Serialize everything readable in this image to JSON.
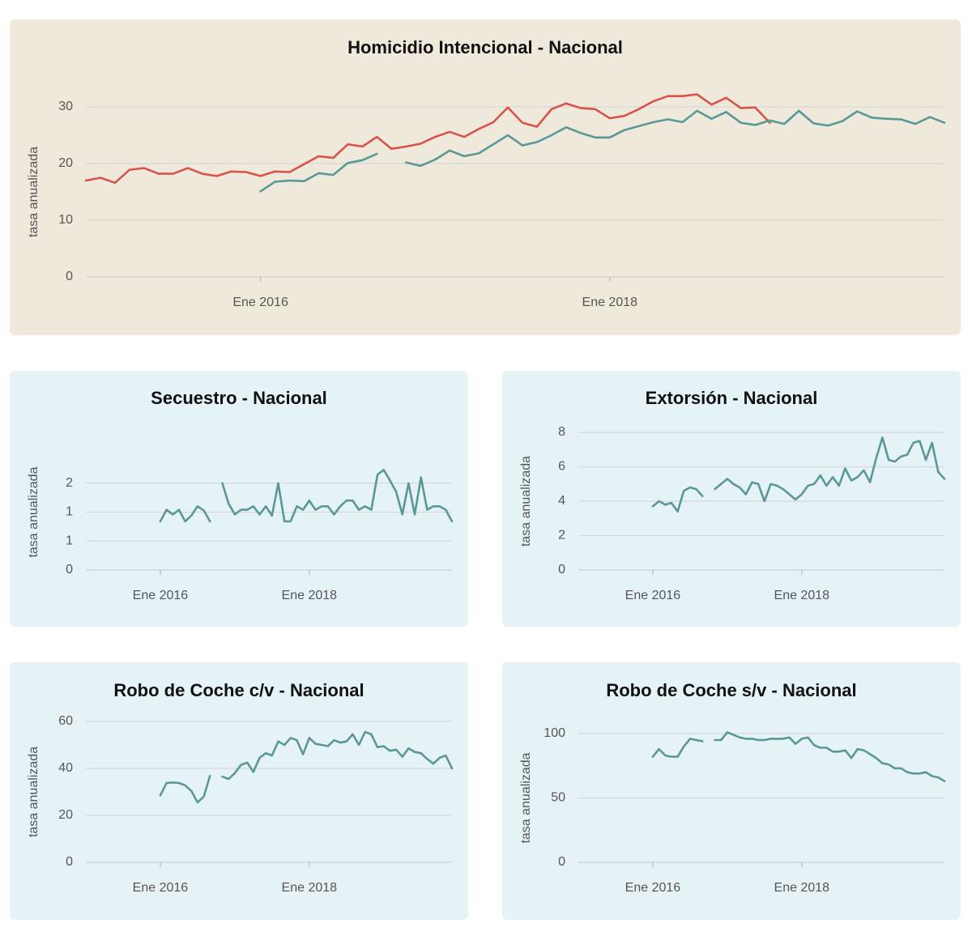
{
  "chart_data": [
    {
      "type": "line",
      "title": "Homicidio Intencional - Nacional",
      "ylabel": "tasa anualizada",
      "xlabel": "",
      "ylim": [
        0,
        30
      ],
      "yticks": [
        0,
        10,
        20,
        30
      ],
      "xticks": [
        {
          "x": 24,
          "label": "Ene 2016"
        },
        {
          "x": 48,
          "label": "Ene 2018"
        }
      ],
      "xlim": [
        12,
        71
      ],
      "grid": true,
      "background": "#efe9dc",
      "series": [
        {
          "color": "#d9534a",
          "x_start": 12,
          "values": [
            17.0,
            17.5,
            16.6,
            18.9,
            19.2,
            18.2,
            18.2,
            19.2,
            18.2,
            17.8,
            18.6,
            18.5,
            17.8,
            18.6,
            18.5,
            19.9,
            21.3,
            21.0,
            23.4,
            23.0,
            24.7,
            22.6,
            23.0,
            23.5,
            24.7,
            25.6,
            24.7,
            26.1,
            27.3,
            29.9,
            27.2,
            26.5,
            29.6,
            30.6,
            29.8,
            29.6,
            28.0,
            28.4,
            29.6,
            31.0,
            31.9,
            31.9,
            32.2,
            30.4,
            31.6,
            29.8,
            29.9,
            27.2
          ]
        },
        {
          "color": "#5a9898",
          "x_start": 24,
          "values": [
            15.1,
            16.8,
            17.0,
            16.9,
            18.3,
            18.0,
            20.1,
            20.6,
            21.7,
            null,
            20.2,
            19.6,
            20.7,
            22.3,
            21.3,
            21.8,
            23.4,
            25.0,
            23.2,
            23.8,
            25.0,
            26.4,
            25.4,
            24.6,
            24.6,
            25.9,
            26.6,
            27.3,
            27.8,
            27.3,
            29.3,
            27.9,
            29.1,
            27.2,
            26.8,
            27.6,
            27.0,
            29.3,
            27.1,
            26.7,
            27.5,
            29.2,
            28.1,
            27.9,
            27.8,
            27.0,
            28.2,
            27.2
          ]
        }
      ]
    },
    {
      "type": "line",
      "title": "Secuestro - Nacional",
      "ylabel": "tasa anualizada",
      "xlabel": "",
      "ylim": [
        0,
        2
      ],
      "yticks": [
        0,
        0.5,
        1,
        1.5
      ],
      "ytick_labels": [
        "0",
        "1",
        "1",
        "2"
      ],
      "xticks": [
        {
          "x": 24,
          "label": "Ene 2016"
        },
        {
          "x": 48,
          "label": "Ene 2018"
        }
      ],
      "xlim": [
        12,
        71
      ],
      "grid": true,
      "background": "#e6f3f6",
      "series": [
        {
          "color": "#5a9898",
          "x_start": 24,
          "values": [
            0.84,
            1.04,
            0.96,
            1.04,
            0.84,
            0.94,
            1.1,
            1.03,
            0.84,
            null,
            1.5,
            1.15,
            0.96,
            1.04,
            1.04,
            1.1,
            0.96,
            1.1,
            0.94,
            1.5,
            0.84,
            0.84,
            1.1,
            1.04,
            1.2,
            1.04,
            1.1,
            1.1,
            0.96,
            1.1,
            1.2,
            1.2,
            1.04,
            1.1,
            1.04,
            1.65,
            1.73,
            1.55,
            1.35,
            0.96,
            1.5,
            0.96,
            1.6,
            1.04,
            1.1,
            1.1,
            1.04,
            0.84
          ]
        }
      ]
    },
    {
      "type": "line",
      "title": "Extorsión - Nacional",
      "ylabel": "tasa anualizada",
      "xlabel": "",
      "ylim": [
        0,
        8
      ],
      "yticks": [
        0,
        2,
        4,
        6,
        8
      ],
      "xticks": [
        {
          "x": 24,
          "label": "Ene 2016"
        },
        {
          "x": 48,
          "label": "Ene 2018"
        }
      ],
      "xlim": [
        12,
        71
      ],
      "grid": true,
      "background": "#e6f3f6",
      "series": [
        {
          "color": "#5a9898",
          "x_start": 24,
          "values": [
            3.7,
            4.0,
            3.8,
            3.9,
            3.4,
            4.6,
            4.8,
            4.7,
            4.3,
            null,
            4.7,
            5.0,
            5.3,
            5.0,
            4.8,
            4.4,
            5.1,
            5.0,
            4.0,
            5.0,
            4.9,
            4.7,
            4.4,
            4.1,
            4.4,
            4.9,
            5.0,
            5.5,
            4.9,
            5.4,
            4.9,
            5.9,
            5.2,
            5.4,
            5.8,
            5.1,
            6.5,
            7.7,
            6.4,
            6.3,
            6.6,
            6.7,
            7.4,
            7.5,
            6.4,
            7.4,
            5.7,
            5.3
          ]
        }
      ]
    },
    {
      "type": "line",
      "title": "Robo de Coche c/v - Nacional",
      "ylabel": "tasa anualizada",
      "xlabel": "",
      "ylim": [
        0,
        60
      ],
      "yticks": [
        0,
        20,
        40,
        60
      ],
      "xticks": [
        {
          "x": 24,
          "label": "Ene 2016"
        },
        {
          "x": 48,
          "label": "Ene 2018"
        }
      ],
      "xlim": [
        12,
        71
      ],
      "grid": true,
      "background": "#e6f3f6",
      "series": [
        {
          "color": "#5a9898",
          "x_start": 24,
          "values": [
            28.5,
            33.8,
            34.0,
            33.8,
            32.8,
            30.4,
            25.5,
            28.0,
            36.8,
            null,
            36.5,
            35.5,
            38.0,
            41.5,
            42.5,
            38.5,
            44.5,
            46.5,
            45.5,
            51.5,
            50.0,
            53.0,
            52.0,
            46.0,
            53.0,
            50.5,
            50.0,
            49.5,
            52.0,
            51.0,
            51.5,
            54.5,
            50.0,
            55.5,
            54.5,
            49.0,
            49.5,
            47.5,
            48.0,
            45.0,
            48.5,
            47.0,
            46.5,
            44.0,
            42.0,
            44.5,
            45.5,
            40.0
          ]
        }
      ]
    },
    {
      "type": "line",
      "title": "Robo de Coche s/v - Nacional",
      "ylabel": "tasa anualizada",
      "xlabel": "",
      "ylim": [
        0,
        100
      ],
      "yticks": [
        0,
        50,
        100
      ],
      "xticks": [
        {
          "x": 24,
          "label": "Ene 2016"
        },
        {
          "x": 48,
          "label": "Ene 2018"
        }
      ],
      "xlim": [
        12,
        71
      ],
      "grid": true,
      "background": "#e6f3f6",
      "series": [
        {
          "color": "#5a9898",
          "x_start": 24,
          "values": [
            82,
            88,
            83,
            82,
            82,
            90,
            96,
            95,
            94,
            null,
            95,
            95,
            101,
            99,
            97,
            96,
            96,
            95,
            95,
            96,
            96,
            96,
            97,
            92,
            96,
            97,
            91,
            89,
            89,
            86,
            86,
            87,
            81,
            88,
            87,
            84,
            81,
            77,
            76,
            73,
            73,
            70,
            69,
            69,
            70,
            67,
            66,
            63
          ]
        }
      ]
    }
  ]
}
